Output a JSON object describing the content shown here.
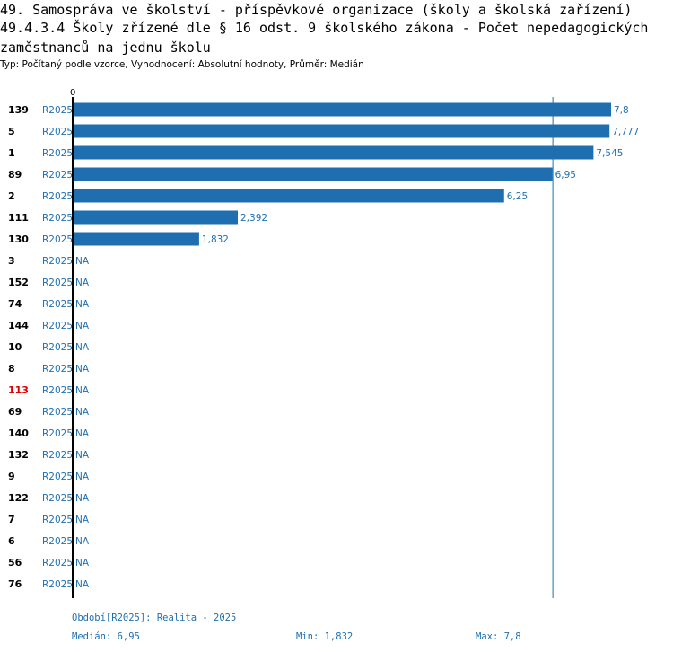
{
  "header": {
    "line1": "49. Samospráva ve školství - příspěvkové organizace (školy a školská zařízení)",
    "line2": "49.4.3.4 Školy zřízené dle § 16 odst. 9 školského zákona - Počet nepedagogických",
    "line3": "zaměstnanců na jednu školu",
    "subtitle": "Typ: Počítaný podle vzorce, Vyhodnocení: Absolutní hodnoty, Průměr: Medián"
  },
  "colors": {
    "bar": "#1f6fb0",
    "highlight_id": "#e00000",
    "axis": "#000000",
    "median_line": "#1f6fb0"
  },
  "chart_data": {
    "type": "bar",
    "orientation": "horizontal",
    "axis_zero_label": "0",
    "xlim": [
      0,
      7.8
    ],
    "median": 6.95,
    "na_label": "NA",
    "highlight": "113",
    "rows": [
      {
        "id": "139",
        "period": "R2025",
        "value": 7.8,
        "label": "7,8"
      },
      {
        "id": "5",
        "period": "R2025",
        "value": 7.777,
        "label": "7,777"
      },
      {
        "id": "1",
        "period": "R2025",
        "value": 7.545,
        "label": "7,545"
      },
      {
        "id": "89",
        "period": "R2025",
        "value": 6.95,
        "label": "6,95"
      },
      {
        "id": "2",
        "period": "R2025",
        "value": 6.25,
        "label": "6,25"
      },
      {
        "id": "111",
        "period": "R2025",
        "value": 2.392,
        "label": "2,392"
      },
      {
        "id": "130",
        "period": "R2025",
        "value": 1.832,
        "label": "1,832"
      },
      {
        "id": "3",
        "period": "R2025",
        "value": null,
        "label": "NA"
      },
      {
        "id": "152",
        "period": "R2025",
        "value": null,
        "label": "NA"
      },
      {
        "id": "74",
        "period": "R2025",
        "value": null,
        "label": "NA"
      },
      {
        "id": "144",
        "period": "R2025",
        "value": null,
        "label": "NA"
      },
      {
        "id": "10",
        "period": "R2025",
        "value": null,
        "label": "NA"
      },
      {
        "id": "8",
        "period": "R2025",
        "value": null,
        "label": "NA"
      },
      {
        "id": "113",
        "period": "R2025",
        "value": null,
        "label": "NA"
      },
      {
        "id": "69",
        "period": "R2025",
        "value": null,
        "label": "NA"
      },
      {
        "id": "140",
        "period": "R2025",
        "value": null,
        "label": "NA"
      },
      {
        "id": "132",
        "period": "R2025",
        "value": null,
        "label": "NA"
      },
      {
        "id": "9",
        "period": "R2025",
        "value": null,
        "label": "NA"
      },
      {
        "id": "122",
        "period": "R2025",
        "value": null,
        "label": "NA"
      },
      {
        "id": "7",
        "period": "R2025",
        "value": null,
        "label": "NA"
      },
      {
        "id": "6",
        "period": "R2025",
        "value": null,
        "label": "NA"
      },
      {
        "id": "56",
        "period": "R2025",
        "value": null,
        "label": "NA"
      },
      {
        "id": "76",
        "period": "R2025",
        "value": null,
        "label": "NA"
      }
    ]
  },
  "footer": {
    "period_text": "Období[R2025]: Realita - 2025",
    "median_text": "Medián: 6,95",
    "min_text": "Min: 1,832",
    "max_text": "Max: 7,8"
  }
}
